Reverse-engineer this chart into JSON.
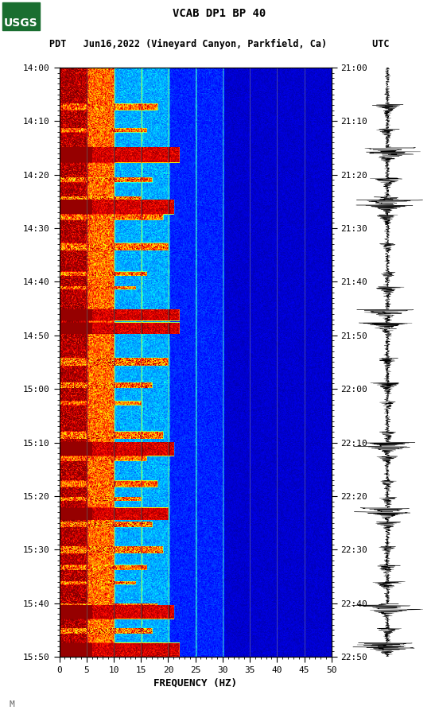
{
  "title_line1": "VCAB DP1 BP 40",
  "title_line2": "PDT   Jun16,2022 (Vineyard Canyon, Parkfield, Ca)        UTC",
  "xlabel": "FREQUENCY (HZ)",
  "freq_min": 0,
  "freq_max": 50,
  "freq_ticks": [
    0,
    5,
    10,
    15,
    20,
    25,
    30,
    35,
    40,
    45,
    50
  ],
  "pdt_labels": [
    "14:00",
    "14:10",
    "14:20",
    "14:30",
    "14:40",
    "14:50",
    "15:00",
    "15:10",
    "15:20",
    "15:30",
    "15:40",
    "15:50"
  ],
  "utc_labels": [
    "21:00",
    "21:10",
    "21:20",
    "21:30",
    "21:40",
    "21:50",
    "22:00",
    "22:10",
    "22:20",
    "22:30",
    "22:40",
    "22:50"
  ],
  "n_time": 720,
  "n_freq": 500,
  "background_color": "#ffffff",
  "usgs_green": "#1a6e30",
  "spectrogram_colormap": "jet",
  "watermark": "M"
}
